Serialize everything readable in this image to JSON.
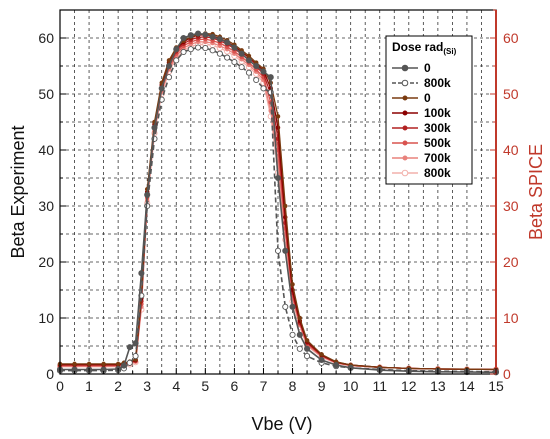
{
  "chart_data": {
    "type": "line",
    "xlabel": "Vbe (V)",
    "ylabel": "Beta Experiment",
    "ylabel_right": "Beta SPICE",
    "xlim": [
      0,
      15
    ],
    "ylim": [
      0,
      65
    ],
    "ylim_right": [
      0,
      65
    ],
    "x_ticks": [
      "0",
      "1",
      "2",
      "3",
      "4",
      "5",
      "6",
      "7",
      "8",
      "9",
      "10",
      "11",
      "12",
      "13",
      "14",
      "15"
    ],
    "y_ticks": [
      "0",
      "10",
      "20",
      "30",
      "40",
      "50",
      "60"
    ],
    "y_ticks_right": [
      "0",
      "10",
      "20",
      "30",
      "40",
      "50",
      "60"
    ],
    "grid": true,
    "legend_position": "top-right",
    "legend_title": "Dose rad",
    "legend_title_sub": "(Si)",
    "x": [
      0,
      0.5,
      1.0,
      1.5,
      2.0,
      2.2,
      2.4,
      2.6,
      2.8,
      3.0,
      3.25,
      3.5,
      3.75,
      4.0,
      4.25,
      4.5,
      4.75,
      5.0,
      5.25,
      5.5,
      5.75,
      6.0,
      6.25,
      6.5,
      6.75,
      7.0,
      7.25,
      7.5,
      7.75,
      8.0,
      8.25,
      8.5,
      9.0,
      9.5,
      10.0,
      11.0,
      12.0,
      13.0,
      14.0,
      15.0
    ],
    "series": [
      {
        "name": "0",
        "group": "experiment",
        "color": "#555555",
        "marker": "filled",
        "dash": false,
        "values": [
          0.8,
          0.8,
          0.8,
          0.8,
          0.9,
          1.5,
          4.8,
          5.5,
          18,
          32,
          44,
          51,
          55,
          58,
          60,
          60.5,
          60.8,
          60.6,
          60.2,
          59.8,
          59.2,
          58.3,
          57.2,
          56,
          55,
          54,
          53,
          35,
          22,
          12,
          7,
          4.5,
          2.5,
          1.6,
          1.1,
          0.7,
          0.5,
          0.4,
          0.35,
          0.3
        ]
      },
      {
        "name": "800k",
        "group": "experiment",
        "color": "#555555",
        "marker": "open",
        "dash": true,
        "values": [
          0.6,
          0.6,
          0.6,
          0.6,
          0.7,
          1.0,
          2.0,
          3.2,
          14,
          30,
          42,
          49,
          53,
          56,
          57.5,
          58,
          58.3,
          58.2,
          57.8,
          57.2,
          56.5,
          55.7,
          54.8,
          53.8,
          52.5,
          51,
          50.3,
          22,
          12,
          7,
          4.5,
          3.2,
          2.0,
          1.4,
          1.1,
          0.8,
          0.6,
          0.5,
          0.45,
          0.4
        ]
      },
      {
        "name": "0",
        "group": "spice",
        "color": "#7a3b10",
        "marker": "small",
        "dash": false,
        "values": [
          1.8,
          1.8,
          1.8,
          1.8,
          1.8,
          2.0,
          2.2,
          2.6,
          14,
          33,
          45,
          52,
          56,
          58.3,
          59.5,
          60.2,
          60.6,
          60.8,
          60.7,
          60.2,
          59.6,
          58.8,
          57.8,
          56.8,
          55.6,
          54.5,
          52,
          46,
          30,
          16,
          10,
          6,
          3.5,
          2.2,
          1.6,
          1.2,
          1.0,
          0.9,
          0.85,
          0.8
        ]
      },
      {
        "name": "100k",
        "group": "spice",
        "color": "#8b0000",
        "marker": "small",
        "dash": false,
        "values": [
          1.7,
          1.7,
          1.7,
          1.7,
          1.7,
          1.9,
          2.1,
          2.5,
          13.5,
          32.5,
          44.6,
          51.6,
          55.6,
          58,
          59.3,
          60.1,
          60.5,
          60.6,
          60.4,
          59.9,
          59.3,
          58.5,
          57.5,
          56.5,
          55.3,
          54.2,
          51,
          44,
          28,
          15,
          9.5,
          5.8,
          3.4,
          2.1,
          1.6,
          1.2,
          1.0,
          0.9,
          0.85,
          0.8
        ]
      },
      {
        "name": "300k",
        "group": "spice",
        "color": "#b22222",
        "marker": "small",
        "dash": false,
        "values": [
          1.6,
          1.6,
          1.6,
          1.6,
          1.6,
          1.8,
          2.0,
          2.4,
          13,
          32,
          44.2,
          51.2,
          55.2,
          57.6,
          59,
          59.7,
          60.1,
          60.2,
          60,
          59.5,
          58.9,
          58.1,
          57.1,
          56.1,
          54.9,
          53.6,
          50,
          42,
          27,
          14.5,
          9.2,
          5.6,
          3.3,
          2.1,
          1.6,
          1.2,
          1.0,
          0.9,
          0.85,
          0.8
        ]
      },
      {
        "name": "500k",
        "group": "spice",
        "color": "#d9534f",
        "marker": "small",
        "dash": false,
        "values": [
          1.5,
          1.5,
          1.5,
          1.5,
          1.5,
          1.7,
          1.9,
          2.3,
          12.5,
          31.5,
          43.8,
          50.8,
          54.8,
          57.2,
          58.6,
          59.3,
          59.7,
          59.8,
          59.5,
          59.1,
          58.4,
          57.6,
          56.6,
          55.6,
          54.4,
          53,
          48.5,
          40,
          26,
          14,
          9,
          5.4,
          3.2,
          2.0,
          1.5,
          1.2,
          1.0,
          0.9,
          0.85,
          0.8
        ]
      },
      {
        "name": "700k",
        "group": "spice",
        "color": "#e8827c",
        "marker": "small",
        "dash": false,
        "values": [
          1.4,
          1.4,
          1.4,
          1.4,
          1.4,
          1.6,
          1.8,
          2.2,
          12,
          31,
          43.4,
          50.4,
          54.4,
          56.8,
          58.2,
          58.9,
          59.3,
          59.3,
          59.1,
          58.6,
          58,
          57.2,
          56.2,
          55.2,
          54,
          52.5,
          47,
          38,
          25,
          13.5,
          8.7,
          5.2,
          3.1,
          2.0,
          1.5,
          1.2,
          1.0,
          0.9,
          0.85,
          0.8
        ]
      },
      {
        "name": "800k",
        "group": "spice",
        "color": "#f2b1ab",
        "marker": "open",
        "dash": false,
        "values": [
          1.3,
          1.3,
          1.3,
          1.3,
          1.3,
          1.5,
          1.7,
          2.1,
          11.5,
          30.5,
          43,
          50,
          54,
          56.4,
          57.8,
          58.5,
          58.8,
          58.9,
          58.7,
          58.2,
          57.6,
          56.8,
          55.8,
          54.8,
          53.6,
          52,
          46,
          36,
          24,
          13,
          8.4,
          5.0,
          3.0,
          1.9,
          1.5,
          1.2,
          1.0,
          0.9,
          0.85,
          0.8
        ]
      }
    ]
  }
}
